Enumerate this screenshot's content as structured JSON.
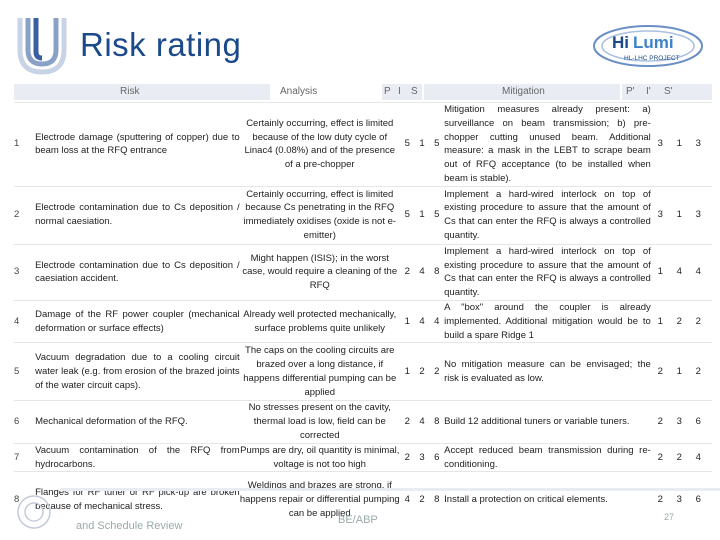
{
  "title": "Risk rating",
  "logo_right": {
    "main": "Hi",
    "accent": "Lumi",
    "sub": "HL-LHC PROJECT"
  },
  "header": {
    "risk": "Risk",
    "analysis": "Analysis",
    "p": "P",
    "i": "I",
    "s": "S",
    "mitigation": "Mitigation",
    "p2": "P'",
    "i2": "I'",
    "s2": "S'"
  },
  "rows": [
    {
      "num": "1",
      "risk": "Electrode damage (sputtering of copper) due to beam loss at the RFQ entrance",
      "analysis": "Certainly occurring, effect is limited because of the low duty cycle of Linac4 (0.08%) and of the presence of a pre-chopper",
      "p": "5",
      "i": "1",
      "s": "5",
      "mitigation": "Mitigation measures already present: a) surveillance on beam transmission; b) pre-chopper cutting unused beam. Additional measure: a mask in the LEBT to scrape beam out of RFQ acceptance (to be installed when beam is stable).",
      "p2": "3",
      "i2": "1",
      "s2": "3"
    },
    {
      "num": "2",
      "risk": "Electrode contamination due to Cs deposition / normal caesiation.",
      "analysis": "Certainly occurring, effect is limited because Cs penetrating in the RFQ immediately oxidises (oxide is not e- emitter)",
      "p": "5",
      "i": "1",
      "s": "5",
      "mitigation": "Implement a hard-wired interlock on top of existing procedure to assure that the amount of Cs that can enter the RFQ is always a controlled quantity.",
      "p2": "3",
      "i2": "1",
      "s2": "3"
    },
    {
      "num": "3",
      "risk": "Electrode contamination due to Cs deposition / caesiation accident.",
      "analysis": "Might happen (ISIS); in the worst case, would require a cleaning of the RFQ",
      "p": "2",
      "i": "4",
      "s": "8",
      "mitigation": "Implement a hard-wired interlock on top of existing procedure to assure that the amount of Cs that can enter the RFQ is always a controlled quantity.",
      "p2": "1",
      "i2": "4",
      "s2": "4"
    },
    {
      "num": "4",
      "risk": "Damage of the RF power coupler (mechanical deformation or surface effects)",
      "analysis": "Already well protected mechanically, surface problems quite unlikely",
      "p": "1",
      "i": "4",
      "s": "4",
      "mitigation": "A \"box\" around the coupler is already implemented. Additional mitigation would be to build a spare Ridge 1",
      "p2": "1",
      "i2": "2",
      "s2": "2"
    },
    {
      "num": "5",
      "risk": "Vacuum degradation due to a cooling circuit water leak (e.g. from erosion of the brazed joints of the water circuit caps).",
      "analysis": "The caps on the cooling circuits are brazed over a long distance, if happens differential pumping can be applied",
      "p": "1",
      "i": "2",
      "s": "2",
      "mitigation": "No mitigation measure can be envisaged; the risk is evaluated as low.",
      "p2": "2",
      "i2": "1",
      "s2": "2"
    },
    {
      "num": "6",
      "risk": "Mechanical deformation of the RFQ.",
      "analysis": "No stresses present on the cavity, thermal load is low, field can be corrected",
      "p": "2",
      "i": "4",
      "s": "8",
      "mitigation": "Build 12 additional tuners or variable tuners.",
      "p2": "2",
      "i2": "3",
      "s2": "6"
    },
    {
      "num": "7",
      "risk": "Vacuum contamination of the RFQ from hydrocarbons.",
      "analysis": "Pumps are dry, oil quantity is minimal, voltage is not too high",
      "p": "2",
      "i": "3",
      "s": "6",
      "mitigation": "Accept reduced beam transmission during re-conditioning.",
      "p2": "2",
      "i2": "2",
      "s2": "4"
    },
    {
      "num": "8",
      "risk": "Flanges for RF tuner or RF pick-up are broken because of mechanical stress.",
      "analysis": "Weldings and brazes are strong, if happens repair or differential pumping can be applied",
      "p": "4",
      "i": "2",
      "s": "8",
      "mitigation": "Install a protection on critical elements.",
      "p2": "2",
      "i2": "3",
      "s2": "6"
    }
  ],
  "footer": {
    "left": "and Schedule Review",
    "mid": "BE/ABP",
    "page": "27"
  },
  "colors": {
    "title": "#1b4a8a",
    "header_band": "#e9edf3"
  }
}
